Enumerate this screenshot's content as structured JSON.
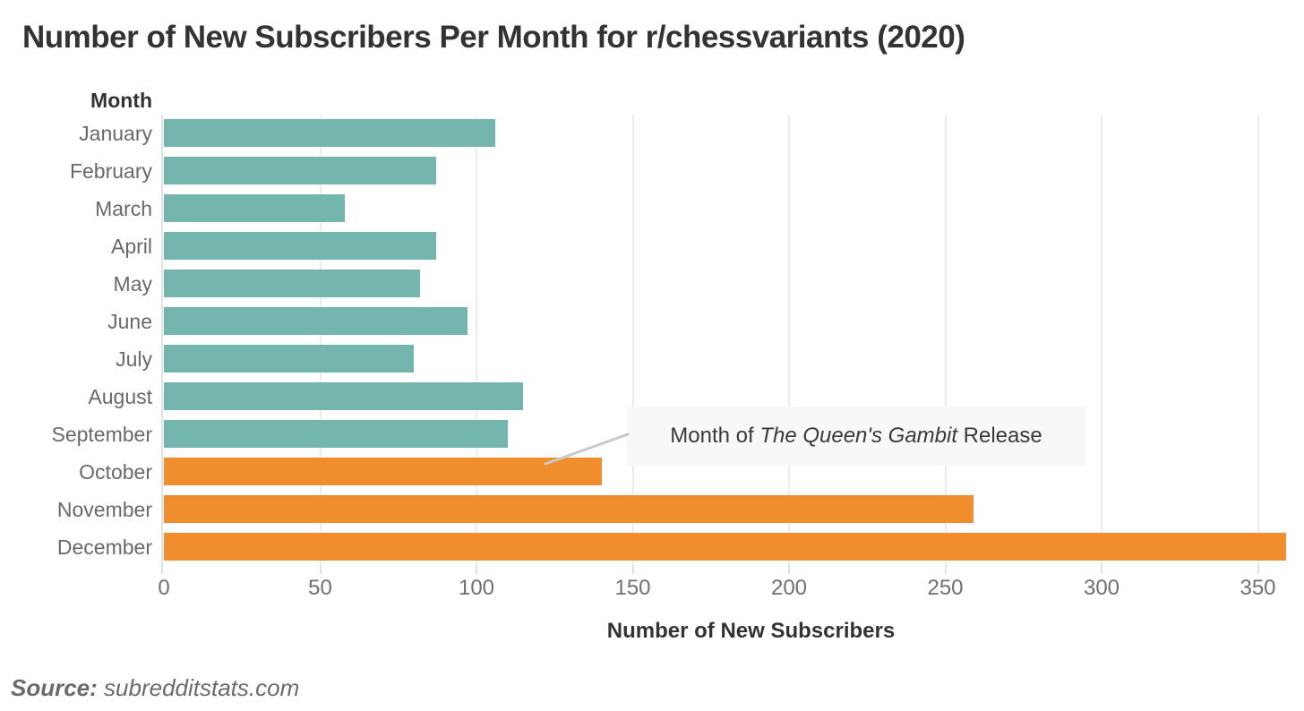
{
  "title": "Number of New Subscribers Per Month for r/chessvariants (2020)",
  "source": {
    "label": "Source:",
    "text": " subredditstats.com"
  },
  "chart_data": {
    "type": "bar",
    "orientation": "horizontal",
    "title": "Number of New Subscribers Per Month for r/chessvariants (2020)",
    "ylabel": "Month",
    "xlabel": "Number of New Subscribers",
    "categories": [
      "January",
      "February",
      "March",
      "April",
      "May",
      "June",
      "July",
      "August",
      "September",
      "October",
      "November",
      "December"
    ],
    "values": [
      106,
      87,
      58,
      87,
      82,
      97,
      80,
      115,
      110,
      140,
      259,
      359
    ],
    "x_ticks": [
      0,
      50,
      100,
      150,
      200,
      250,
      300,
      350
    ],
    "xlim": [
      0,
      365
    ],
    "grid": true,
    "legend": "none",
    "bar_color_default": "#74b6ae",
    "bar_color_highlight": "#f08e2e",
    "highlight_indices": [
      9,
      10,
      11
    ],
    "annotation": {
      "prefix": "Month of ",
      "italic": "The Queen's Gambit",
      "suffix": " Release",
      "target_month": "October"
    }
  },
  "colors": {
    "title_text": "#333333",
    "label_text": "#666a6d",
    "tick_text": "#707070",
    "gridline": "#ececec",
    "annotation_bg": "#f8f8f8",
    "leader_line": "#c9c9c9",
    "source_text": "#6b6b6b"
  }
}
